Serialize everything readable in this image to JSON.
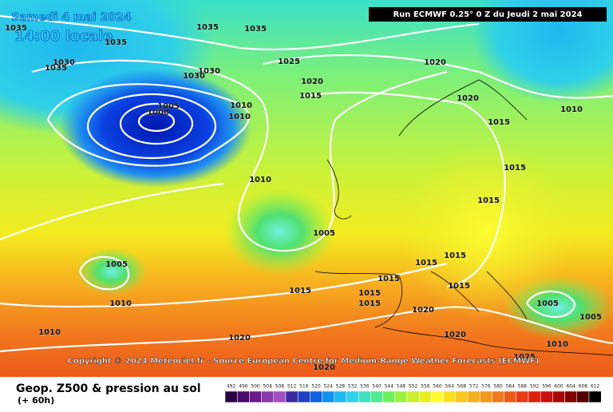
{
  "valid_date": "Samedi 4 mai 2024",
  "valid_time": "14:00 locale",
  "run": "Run ECMWF 0.25° 0 Z du Jeudi 2 mai 2024",
  "copyright": "Copyright © 2024 Meteociel.fr - Source European Centre for Medium-Range Weather Forecasts (ECMWF)",
  "product": "Geop. Z500 & pression au sol",
  "lead_time": "(+ 60h)",
  "isobar_labels": [
    "1035",
    "1035",
    "1035",
    "1035",
    "1030",
    "1035",
    "1030",
    "1030",
    "1025",
    "1020",
    "1020",
    "1015",
    "1020",
    "1010",
    "1005",
    "1000",
    "1010",
    "1010",
    "1015",
    "1015",
    "1010",
    "1015",
    "1005",
    "1005",
    "1015",
    "1015",
    "1015",
    "1015",
    "1015",
    "1015",
    "1015",
    "1005",
    "1010",
    "1020",
    "1005",
    "1010",
    "1020",
    "1020",
    "1010",
    "1025",
    "1020"
  ],
  "legend": {
    "labels": [
      492,
      496,
      500,
      504,
      508,
      512,
      516,
      520,
      524,
      528,
      532,
      536,
      540,
      544,
      548,
      552,
      556,
      560,
      564,
      568,
      572,
      576,
      580,
      584,
      588,
      592,
      596,
      600,
      604,
      608,
      612
    ]
  }
}
